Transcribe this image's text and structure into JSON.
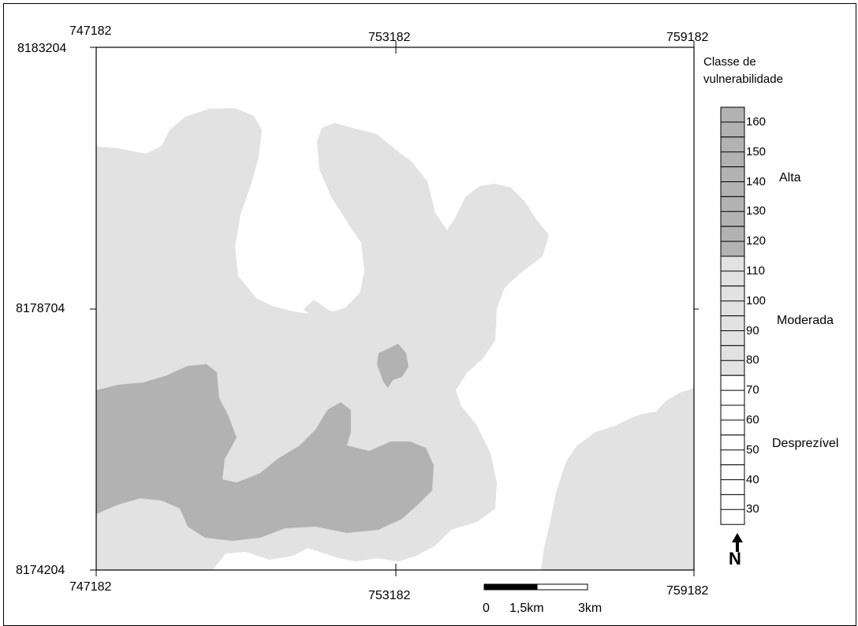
{
  "map": {
    "coordinates": {
      "top_left_x": "747182",
      "top_center_x": "753182",
      "top_right_x": "759182",
      "top_left_y": "8183204",
      "mid_left_y": "8178704",
      "bottom_left_y": "8174204",
      "bottom_left_x": "747182",
      "bottom_center_x": "753182",
      "bottom_right_x": "759182"
    },
    "colors": {
      "background": "#ffffff",
      "moderate": "#e2e2e2",
      "high": "#b2b2b2",
      "frame": "#000000"
    }
  },
  "legend": {
    "title_line1": "Classe de",
    "title_line2": "vulnerabilidade",
    "classes": [
      {
        "value": "160",
        "level": "high"
      },
      {
        "value": "150",
        "level": "high"
      },
      {
        "value": "140",
        "level": "high"
      },
      {
        "value": "130",
        "level": "high"
      },
      {
        "value": "120",
        "level": "high"
      },
      {
        "value": "110",
        "level": "moderate"
      },
      {
        "value": "100",
        "level": "moderate"
      },
      {
        "value": "90",
        "level": "moderate"
      },
      {
        "value": "80",
        "level": "moderate"
      },
      {
        "value": "70",
        "level": "negligible"
      },
      {
        "value": "60",
        "level": "negligible"
      },
      {
        "value": "50",
        "level": "negligible"
      },
      {
        "value": "40",
        "level": "negligible"
      },
      {
        "value": "30",
        "level": "negligible"
      }
    ],
    "class_names": {
      "high": "Alta",
      "moderate": "Moderada",
      "negligible": "Desprezível"
    }
  },
  "scale_bar": {
    "labels": [
      "0",
      "1,5km",
      "3km"
    ]
  },
  "north_arrow": {
    "label": "N",
    "icon": "north-arrow-icon"
  }
}
